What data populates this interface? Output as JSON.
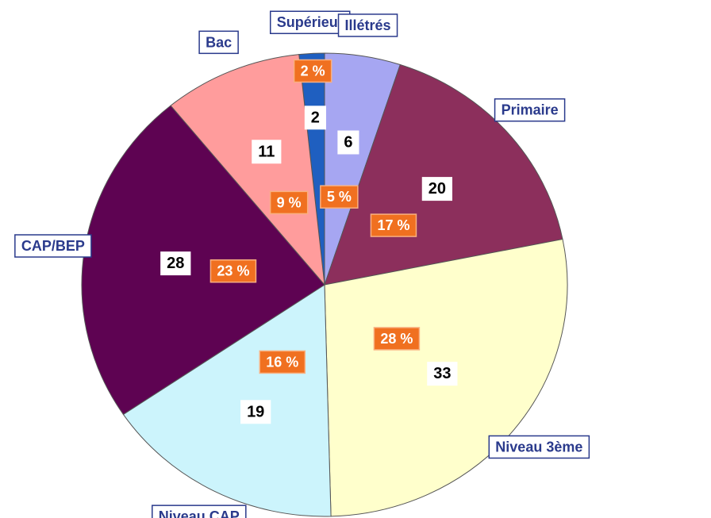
{
  "chart_data": {
    "type": "pie",
    "categories": [
      "Supérieur",
      "Illétrés",
      "Primaire",
      "Niveau 3ème",
      "Niveau CAP",
      "CAP/BEP",
      "Bac"
    ],
    "values": [
      2,
      6,
      20,
      33,
      19,
      28,
      11
    ],
    "percents": [
      2,
      5,
      17,
      28,
      16,
      23,
      9
    ],
    "percent_labels": [
      "2 %",
      "5 %",
      "17 %",
      "28 %",
      "16 %",
      "23 %",
      "9 %"
    ],
    "colors": [
      "#1f5fc0",
      "#a6a6f2",
      "#8c2f5c",
      "#ffffcc",
      "#ccf4fc",
      "#5e0352",
      "#ff9c9c"
    ]
  }
}
